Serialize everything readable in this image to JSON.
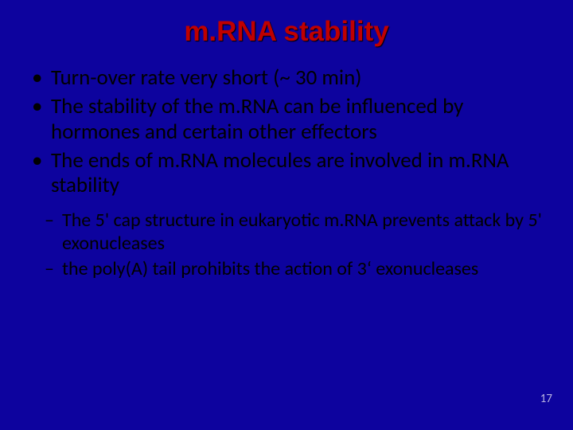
{
  "background_color": "#0d039e",
  "title_color": "#c00000",
  "body_text_color": "#000000",
  "page_number_color": "#b8b2e0",
  "title_fontsize": 35,
  "body_fontsize": 27,
  "sub_fontsize": 24,
  "title": "m.RNA stability",
  "bullets": [
    "Turn-over rate very short (~ 30 min)",
    "The stability of the m.RNA can be influenced by hormones and certain other effectors",
    "The ends of m.RNA molecules are involved in m.RNA stability"
  ],
  "sub_bullets": [
    "The 5' cap structure in eukaryotic m.RNA prevents attack by 5' exonucleases",
    "the poly(A) tail prohibits the action of 3‘ exonucleases"
  ],
  "page_number": "17"
}
